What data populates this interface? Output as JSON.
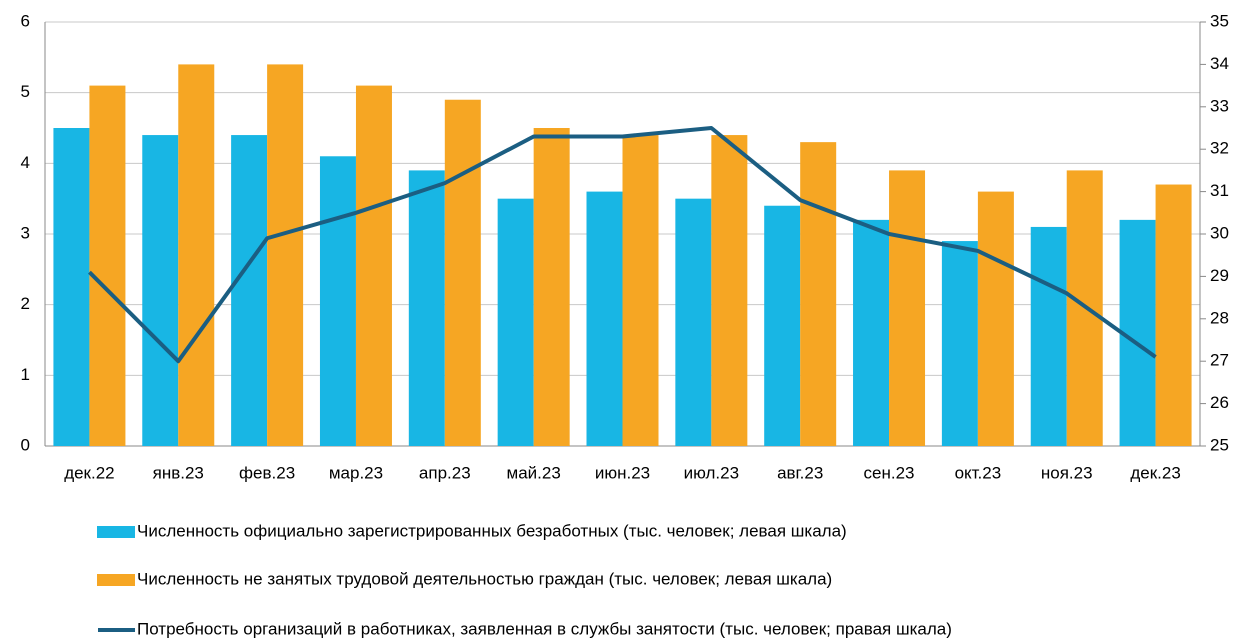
{
  "chart_data": {
    "type": "bar_line",
    "categories": [
      "дек.22",
      "янв.23",
      "фев.23",
      "мар.23",
      "апр.23",
      "май.23",
      "июн.23",
      "июл.23",
      "авг.23",
      "сен.23",
      "окт.23",
      "ноя.23",
      "дек.23"
    ],
    "series": [
      {
        "name": "Численность официально зарегистрированных безработных  (тыс. человек; левая шкала)",
        "type": "bar",
        "color": "#18b6e4",
        "values": [
          4.5,
          4.4,
          4.4,
          4.1,
          3.9,
          3.5,
          3.6,
          3.5,
          3.4,
          3.2,
          2.9,
          3.1,
          3.2
        ]
      },
      {
        "name": "Численность не занятых трудовой деятельностью граждан (тыс. человек; левая шкала)",
        "type": "bar",
        "color": "#f6a623",
        "values": [
          5.1,
          5.4,
          5.4,
          5.1,
          4.9,
          4.5,
          4.4,
          4.4,
          4.3,
          3.9,
          3.6,
          3.9,
          3.7
        ]
      },
      {
        "name": "Потребность организаций в работниках, заявленная в службы занятости (тыс. человек; правая шкала)",
        "type": "line",
        "axis": "y2",
        "color": "#1b5e82",
        "values": [
          29.1,
          27.0,
          29.9,
          30.5,
          31.2,
          32.3,
          32.3,
          32.5,
          30.8,
          30.0,
          29.6,
          28.6,
          27.1
        ]
      }
    ],
    "ylim": [
      0,
      6
    ],
    "yticks": [
      0,
      1,
      2,
      3,
      4,
      5,
      6
    ],
    "y2lim": [
      25,
      35
    ],
    "y2ticks": [
      25,
      26,
      27,
      28,
      29,
      30,
      31,
      32,
      33,
      34,
      35
    ],
    "grid": true
  }
}
